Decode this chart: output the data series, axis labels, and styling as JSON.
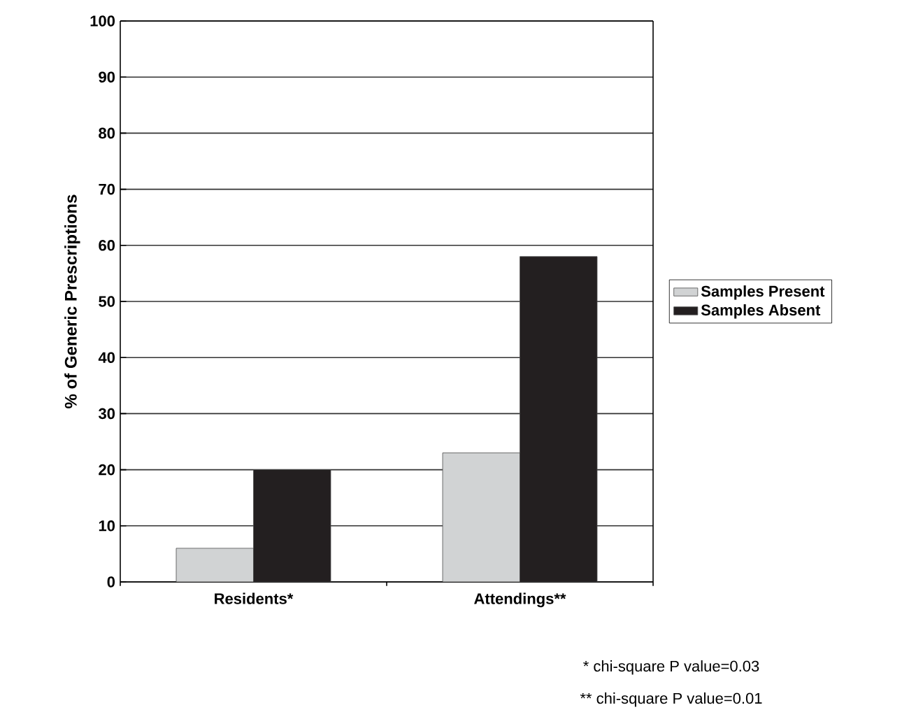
{
  "chart_data": {
    "type": "bar",
    "ylabel": "% of Generic Prescriptions",
    "categories": [
      "Residents*",
      "Attendings**"
    ],
    "series": [
      {
        "name": "Samples Present",
        "color": "#d1d3d4",
        "values": [
          6,
          23
        ]
      },
      {
        "name": "Samples Absent",
        "color": "#231f20",
        "values": [
          20,
          58
        ]
      }
    ],
    "ylim": [
      0,
      100
    ],
    "yticks": [
      0,
      10,
      20,
      30,
      40,
      50,
      60,
      70,
      80,
      90,
      100
    ],
    "grid": "y",
    "legend": "right",
    "annotations": [
      "* chi-square P value=0.03",
      "** chi-square P value=0.01"
    ]
  }
}
